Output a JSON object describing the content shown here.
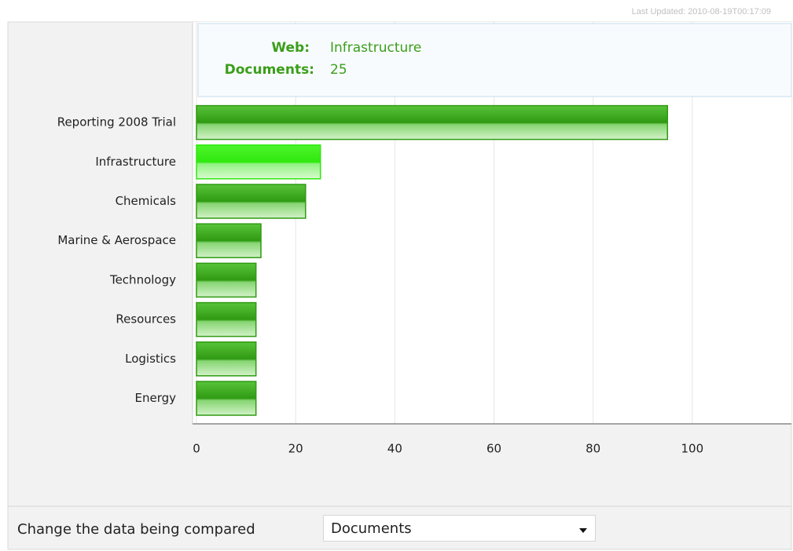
{
  "last_updated": "Last Updated: 2010-08-19T00:17:09",
  "chart_data": {
    "type": "hbar",
    "categories": [
      "Reporting 2008 Trial",
      "Infrastructure",
      "Chemicals",
      "Marine & Aerospace",
      "Technology",
      "Resources",
      "Logistics",
      "Energy"
    ],
    "values": [
      95,
      25,
      22,
      13,
      12,
      12,
      12,
      12
    ],
    "color": "#2f9a12",
    "highlight_color": "#2fe80e",
    "highlight_index": 1,
    "xlim": [
      0,
      120
    ],
    "xticks": [
      0,
      20,
      40,
      60,
      80,
      100
    ],
    "grid": true,
    "tooltip": {
      "labels": [
        "Web:",
        "Documents:"
      ],
      "web": "Infrastructure",
      "documents": 25
    }
  },
  "controls": {
    "label": "Change the data being compared",
    "selected": "Documents"
  }
}
